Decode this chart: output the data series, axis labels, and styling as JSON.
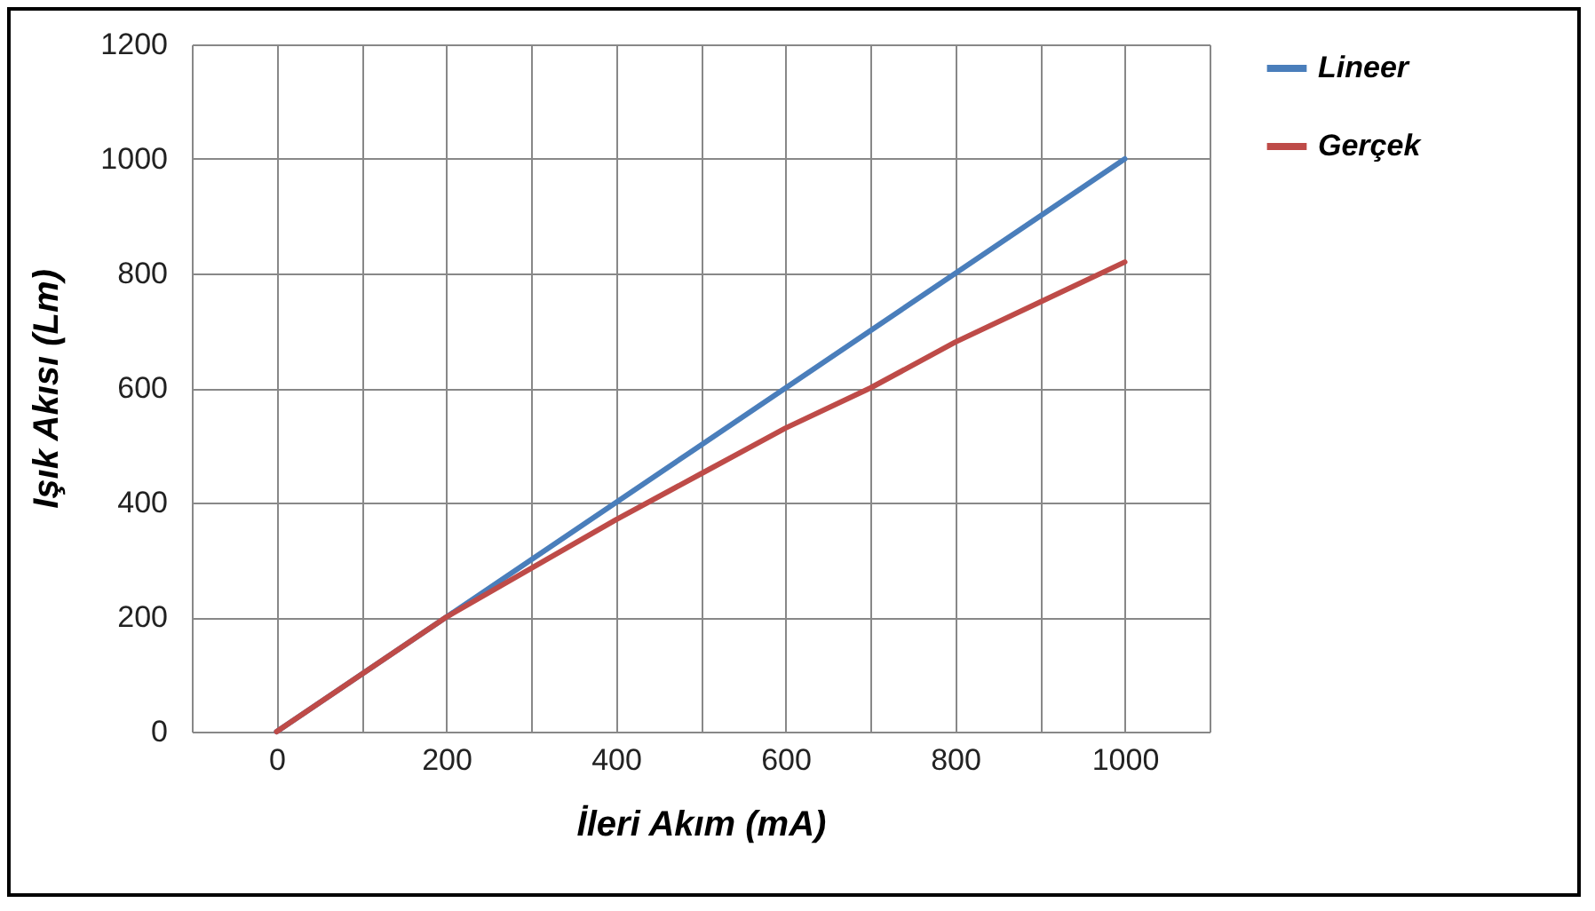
{
  "chart_data": {
    "type": "line",
    "xlabel": "İleri Akım (mA)",
    "ylabel": "Işık Akısı (Lm)",
    "x": [
      0,
      100,
      200,
      300,
      400,
      500,
      600,
      700,
      800,
      900,
      1000
    ],
    "series": [
      {
        "name": "Lineer",
        "color": "#4a7ebb",
        "values": [
          0,
          100,
          200,
          300,
          400,
          500,
          600,
          700,
          800,
          900,
          1000
        ]
      },
      {
        "name": "Gerçek",
        "color": "#be4b48",
        "values": [
          0,
          100,
          200,
          285,
          370,
          450,
          530,
          600,
          680,
          750,
          820
        ]
      }
    ],
    "xlim": [
      -100,
      1100
    ],
    "xticks": [
      {
        "value": -100,
        "label": null
      },
      0,
      {
        "value": 100,
        "label": null
      },
      200,
      {
        "value": 300,
        "label": null
      },
      400,
      {
        "value": 500,
        "label": null
      },
      600,
      {
        "value": 700,
        "label": null
      },
      800,
      {
        "value": 900,
        "label": null
      },
      1000,
      {
        "value": 1100,
        "label": null
      }
    ],
    "ylim": [
      0,
      1200
    ],
    "yticks": [
      0,
      200,
      400,
      600,
      800,
      1000,
      1200
    ],
    "grid": true,
    "legend": "right",
    "marker": "none",
    "line_style": "solid"
  }
}
